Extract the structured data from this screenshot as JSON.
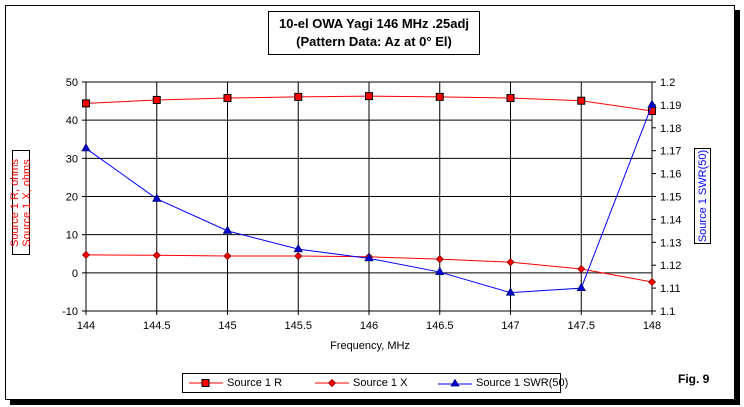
{
  "chart_data": {
    "type": "line",
    "title": "10-el OWA Yagi 146 MHz .25adj",
    "subtitle": "(Pattern Data: Az at 0° El)",
    "xlabel": "Frequency, MHz",
    "ylabel_left": [
      "Source 1 R, ohms",
      "Source 1 X, ohms"
    ],
    "ylabel_right": "Source 1 SWR(50)",
    "x": [
      144,
      144.5,
      145,
      145.5,
      146,
      146.5,
      147,
      147.5,
      148
    ],
    "x_ticks": [
      "144",
      "144.5",
      "145",
      "145.5",
      "146",
      "146.5",
      "147",
      "147.5",
      "148"
    ],
    "xlim": [
      144,
      148
    ],
    "ylim_left": [
      -10,
      50
    ],
    "y_ticks_left": [
      "50",
      "40",
      "30",
      "20",
      "10",
      "0",
      "-10"
    ],
    "ylim_right": [
      1.1,
      1.2
    ],
    "y_ticks_right": [
      "1.2",
      "1.19",
      "1.18",
      "1.17",
      "1.16",
      "1.15",
      "1.14",
      "1.13",
      "1.12",
      "1.11",
      "1.1"
    ],
    "grid": true,
    "legend_position": "bottom",
    "series": [
      {
        "name": "Source 1 R",
        "axis": "left",
        "color": "#ff0000",
        "marker": "square",
        "marker_fill": "#ff0000",
        "values": [
          44.4,
          45.3,
          45.8,
          46.1,
          46.3,
          46.1,
          45.8,
          45.1,
          42.4
        ]
      },
      {
        "name": "Source 1 X",
        "axis": "left",
        "color": "#ff0000",
        "marker": "diamond",
        "marker_fill": "#ff0000",
        "values": [
          4.7,
          4.6,
          4.4,
          4.4,
          4.2,
          3.6,
          2.8,
          1.0,
          -2.4
        ]
      },
      {
        "name": "Source 1 SWR(50)",
        "axis": "right",
        "color": "#0000ff",
        "marker": "triangle",
        "marker_fill": "#0000cc",
        "values": [
          1.171,
          1.149,
          1.135,
          1.127,
          1.123,
          1.117,
          1.108,
          1.11,
          1.19
        ]
      }
    ]
  },
  "figure_label": "Fig. 9"
}
